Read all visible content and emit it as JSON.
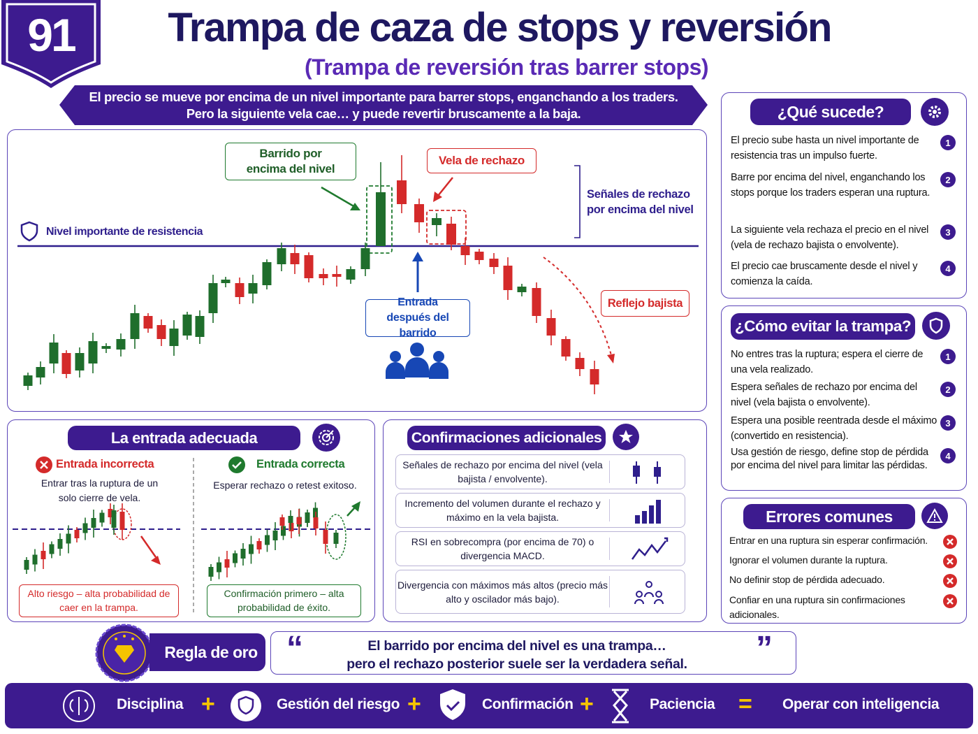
{
  "badge": "91",
  "header": {
    "title": "Trampa de caza de stops y reversión",
    "subtitle": "(Trampa de reversión tras barrer stops)"
  },
  "intro": [
    "El precio se mueve por encima de un nivel importante para barrer stops, enganchando a los traders.",
    "Pero la siguiente vela cae… y puede revertir bruscamente a la baja."
  ],
  "main_chart": {
    "level_label": "Nivel importante de resistencia",
    "sweep": "Barrido por encima del nivel",
    "rejection": "Vela de rechazo",
    "signals": "Señales de rechazo por encima del nivel",
    "entry": "Entrada después del barrido",
    "bearish": "Reflejo bajista"
  },
  "what_happens": {
    "title": "¿Qué sucede?",
    "items": [
      {
        "num": "1",
        "text": "El precio sube hasta un nivel importante de resistencia tras un impulso fuerte."
      },
      {
        "num": "2",
        "text": "Barre por encima del nivel, enganchando los stops porque los traders esperan una ruptura."
      },
      {
        "num": "3",
        "text": "La siguiente vela rechaza el precio en el nivel (vela de rechazo bajista o envolvente)."
      },
      {
        "num": "4",
        "text": "El precio cae bruscamente desde el nivel y comienza la caída."
      }
    ]
  },
  "avoid": {
    "title": "¿Cómo evitar la trampa?",
    "items": [
      {
        "num": "1",
        "text": "No entres tras la ruptura; espera el cierre de una vela realizado."
      },
      {
        "num": "2",
        "text": "Espera señales de rechazo por encima del nivel (vela bajista o envolvente)."
      },
      {
        "num": "3",
        "text": "Espera una posible reentrada desde el máximo (convertido en resistencia)."
      },
      {
        "num": "4",
        "text": "Usa gestión de riesgo, define stop de pérdida por encima del nivel para limitar las pérdidas."
      }
    ]
  },
  "errors": {
    "title": "Errores comunes",
    "items": [
      "Entrar en una ruptura sin esperar confirmación.",
      "Ignorar el volumen durante la ruptura.",
      "No definir stop de pérdida adecuado.",
      "Confiar en una ruptura sin confirmaciones adicionales."
    ]
  },
  "entry": {
    "title": "La entrada adecuada",
    "wrong": {
      "title": "Entrada incorrecta",
      "text": "Entrar tras la ruptura de un solo cierre de vela.",
      "note": "Alto riesgo – alta probabilidad de caer en la trampa."
    },
    "right": {
      "title": "Entrada correcta",
      "text": "Esperar rechazo o retest exitoso.",
      "note": "Confirmación primero – alta probabilidad de éxito."
    }
  },
  "confirmations": {
    "title": "Confirmaciones adicionales",
    "items": [
      "Señales de rechazo por encima del nivel (vela bajista / envolvente).",
      "Incremento del volumen durante el rechazo y máximo en la vela bajista.",
      "RSI en sobrecompra (por encima de 70) o divergencia MACD.",
      "Divergencia con máximos más altos (precio más alto y oscilador más bajo)."
    ]
  },
  "golden_rule": {
    "title": "Regla de oro",
    "open": "“",
    "quote": [
      "El barrido por encima del nivel es una trampa…",
      "pero el rechazo posterior suele ser la verdadera señal."
    ],
    "close": "”"
  },
  "footer": {
    "items": [
      "Disciplina",
      "Gestión del riesgo",
      "Confirmación",
      "Paciencia"
    ],
    "plus": "+",
    "equals": "=",
    "result": "Operar con inteligencia"
  }
}
